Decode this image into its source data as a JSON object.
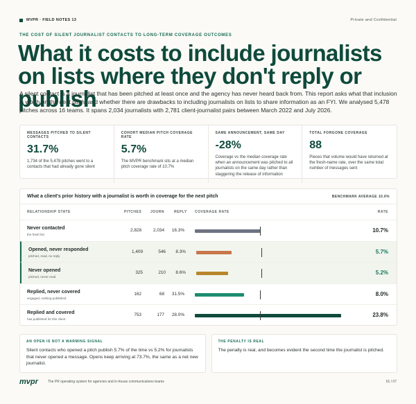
{
  "header": {
    "brand": "MVPR · FIELD NOTES 13",
    "confidentiality": "Private and Confidential"
  },
  "eyebrow": "THE COST OF SILENT JOURNALIST CONTACTS TO LONG-TERM COVERAGE OUTCOMES",
  "title": "What it costs to include journalists on lists where they don't reply or publish",
  "intro": "A silent contact is a journalist that has been pitched at least once and the agency has never heard back from. This report asks what that inclusion is worth on the next pitch, and whether there are drawbacks to including journalists on lists to share information as an FYI. We analysed 5,478 pitches across 16 teams. It spans 2,034 journalists with 2,781 client-journalist pairs between March 2022 and July 2026.",
  "stats": [
    {
      "label": "MESSAGES PITCHED TO SILENT CONTACTS",
      "value": "31.7%",
      "desc": "1,734 of the 5,478 pitches went to a contacts that had already gone silent"
    },
    {
      "label": "COHORT MEDIAN PITCH COVERAGE RATE",
      "value": "5.7%",
      "desc": "The MVPR benchmark sits at a median pitch coverage rate of 10.7%"
    },
    {
      "label": "SAME ANNOUNCEMENT, SAME DAY",
      "value": "-28%",
      "desc": "Coverage vs the median coverage rate when an announcement was pitched to all journalists on the same day rather than staggering the release of information"
    },
    {
      "label": "TOTAL FORGONE COVERAGE",
      "value": "88",
      "desc": "Pieces that volume would have returned at the fresh-name rate, over the same total number of messages sent"
    }
  ],
  "table": {
    "title": "What a client's prior history with a journalist is worth in coverage for the next pitch",
    "benchmark_label": "BENCHMARK AVERAGE 10.6%",
    "columns": {
      "state": "RELATIONSHIP STATE",
      "pitches": "PITCHES",
      "journ": "JOURN",
      "reply": "REPLY",
      "coverage": "COVERAGE RATE",
      "rate": "RATE"
    }
  },
  "chart_data": {
    "type": "bar",
    "benchmark": 10.6,
    "xlim": [
      0,
      25
    ],
    "rows": [
      {
        "name": "Never contacted",
        "sub": "the fresh list",
        "pitches": "2,828",
        "journ": "2,034",
        "reply": "16.3%",
        "rate": 10.7,
        "rate_label": "10.7%",
        "color": "#6e7282",
        "rate_color": "#1d2521",
        "highlight": false
      },
      {
        "name": "Opened, never responded",
        "sub": "pitched, read, no reply",
        "pitches": "1,409",
        "journ": "546",
        "reply": "8.3%",
        "rate": 5.7,
        "rate_label": "5.7%",
        "color": "#c8764a",
        "rate_color": "#14765b",
        "highlight": true
      },
      {
        "name": "Never opened",
        "sub": "pitched, never read",
        "pitches": "325",
        "journ": "210",
        "reply": "8.6%",
        "rate": 5.2,
        "rate_label": "5.2%",
        "color": "#b8862b",
        "rate_color": "#14765b",
        "highlight": true
      },
      {
        "name": "Replied, never covered",
        "sub": "engaged, nothing published",
        "pitches": "162",
        "journ": "68",
        "reply": "31.5%",
        "rate": 8.0,
        "rate_label": "8.0%",
        "color": "#1d8c70",
        "rate_color": "#1d2521",
        "highlight": false
      },
      {
        "name": "Replied and covered",
        "sub": "has published for this client",
        "pitches": "753",
        "journ": "177",
        "reply": "28.0%",
        "rate": 23.8,
        "rate_label": "23.8%",
        "color": "#0f4a3c",
        "rate_color": "#1d2521",
        "highlight": false
      }
    ]
  },
  "callouts": [
    {
      "title": "AN OPEN IS NOT A WARMING SIGNAL",
      "body": "Silent contacts who opened a pitch publish 5.7% of the time vs 5.2% for journalists that never opened a message. Opens keep arriving at 73.7%, the same as a net new journalist."
    },
    {
      "title": "THE PENALTY IS REAL",
      "body": "The penalty is real, and becomes evident the second time the journalist is pitched."
    }
  ],
  "footer": {
    "logo": "mvpr",
    "tagline": "The PR operating system for agencies and in-house communications teams",
    "page": "01 / 07"
  }
}
